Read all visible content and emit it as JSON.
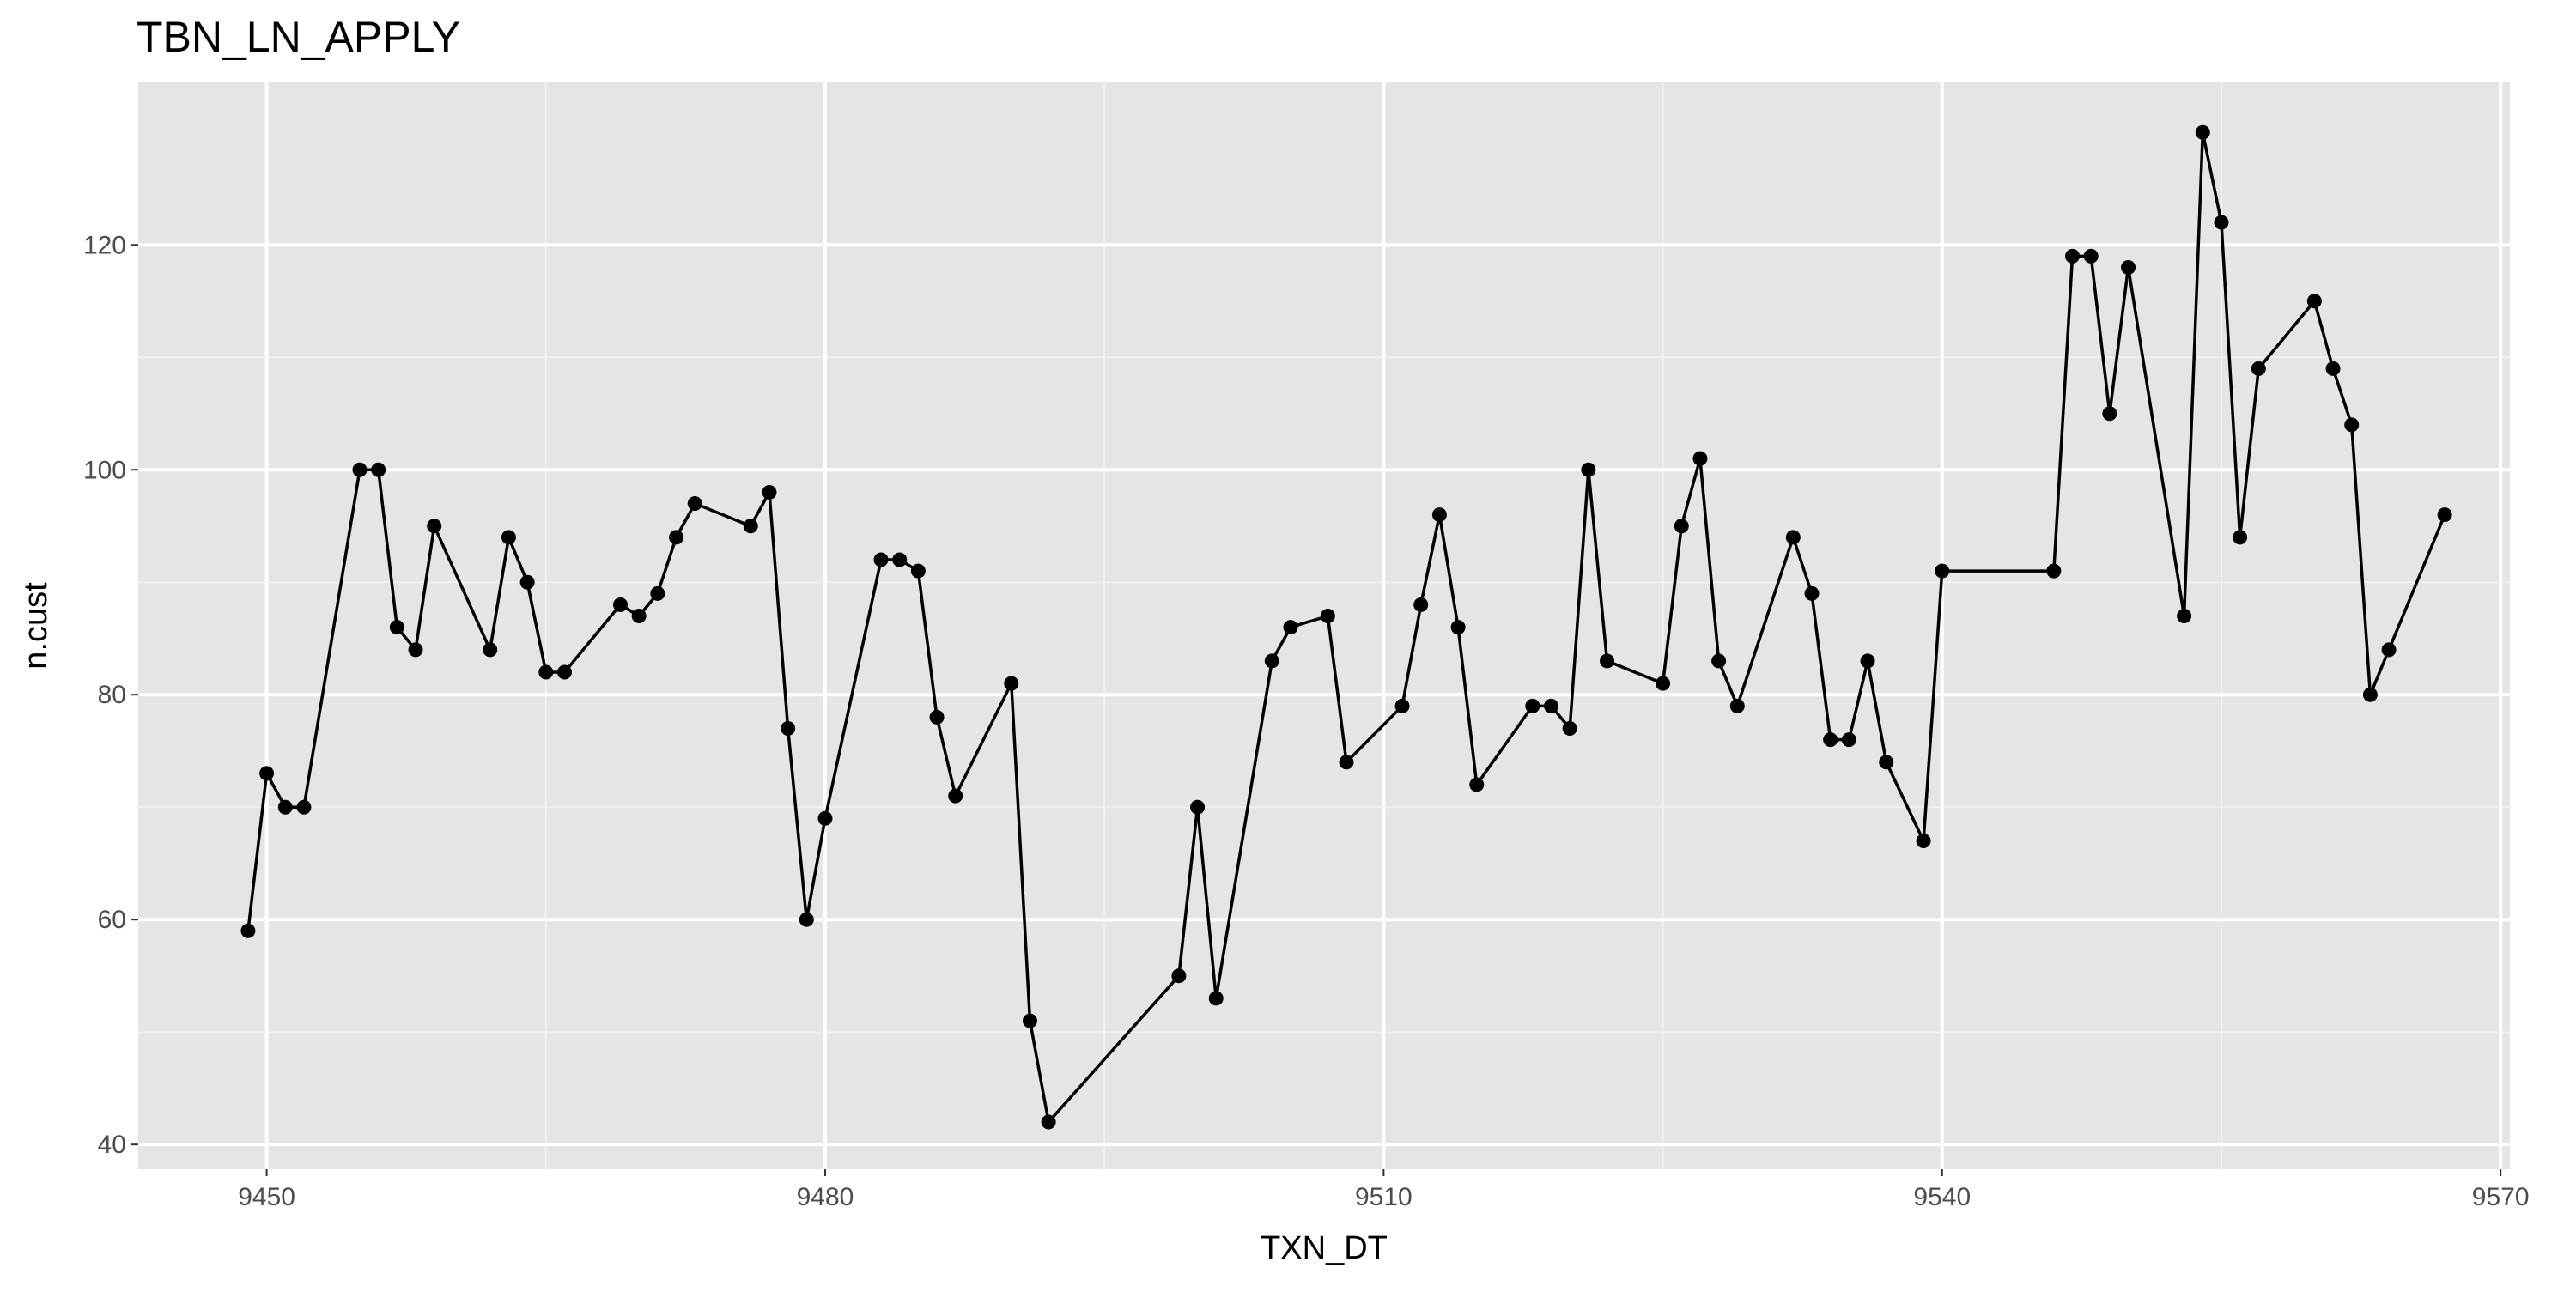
{
  "chart_data": {
    "type": "line",
    "title": "TBN_LN_APPLY",
    "x_label": "TXN_DT",
    "y_label": "n.cust",
    "x": [
      9449,
      9450,
      9451,
      9452,
      9455,
      9456,
      9457,
      9458,
      9459,
      9462,
      9463,
      9464,
      9465,
      9466,
      9469,
      9470,
      9471,
      9472,
      9473,
      9476,
      9477,
      9478,
      9479,
      9480,
      9483,
      9484,
      9485,
      9486,
      9487,
      9490,
      9491,
      9492,
      9499,
      9500,
      9501,
      9504,
      9505,
      9507,
      9508,
      9511,
      9512,
      9513,
      9514,
      9515,
      9518,
      9519,
      9520,
      9521,
      9522,
      9525,
      9526,
      9527,
      9528,
      9529,
      9532,
      9533,
      9534,
      9535,
      9536,
      9537,
      9539,
      9540,
      9546,
      9547,
      9548,
      9549,
      9550,
      9553,
      9554,
      9555,
      9556,
      9557,
      9560,
      9561,
      9562,
      9563,
      9564,
      9567
    ],
    "series": [
      {
        "color": "#000000",
        "values": [
          59,
          73,
          70,
          70,
          100,
          100,
          86,
          84,
          95,
          84,
          94,
          90,
          82,
          82,
          88,
          87,
          89,
          94,
          97,
          95,
          98,
          77,
          60,
          69,
          92,
          92,
          91,
          78,
          71,
          81,
          51,
          42,
          55,
          70,
          53,
          83,
          86,
          87,
          74,
          79,
          88,
          96,
          86,
          72,
          79,
          79,
          77,
          100,
          83,
          81,
          95,
          101,
          83,
          79,
          94,
          89,
          76,
          76,
          83,
          74,
          67,
          91,
          91,
          119,
          119,
          105,
          118,
          87,
          130,
          122,
          94,
          109,
          115,
          109,
          104,
          80,
          84,
          96
        ]
      }
    ],
    "xlim": [
      9443.1,
      9570.5
    ],
    "ylim": [
      37.8,
      134.45
    ],
    "xticks": [
      9450,
      9480,
      9510,
      9540,
      9570
    ],
    "yticks": [
      40,
      60,
      80,
      100,
      120
    ],
    "grid": true
  }
}
